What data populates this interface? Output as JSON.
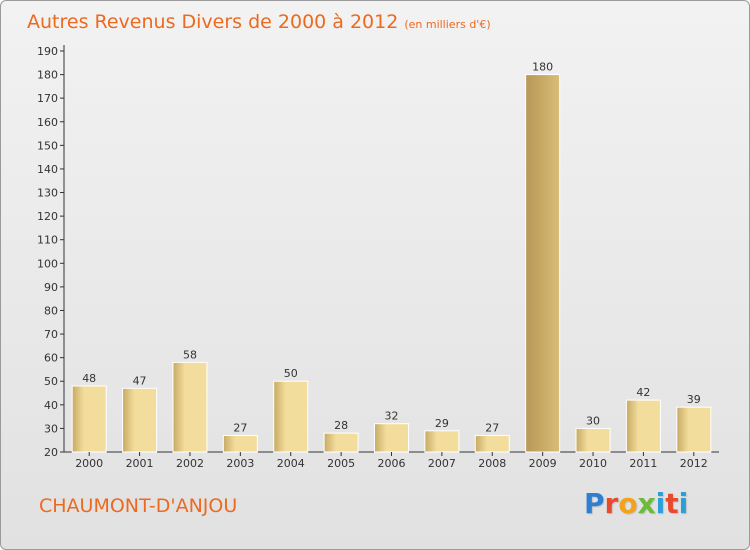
{
  "header": {
    "title": "Autres Revenus Divers de 2000 à 2012",
    "unit": "(en milliers d'€)"
  },
  "footer": {
    "place": "CHAUMONT-D'ANJOU",
    "logo": "Proxiti"
  },
  "colors": {
    "accent": "#ec6a1f",
    "bar_light": "#f3dd9d",
    "bar_dark": "#c7aa63",
    "axis": "#333333"
  },
  "chart_data": {
    "type": "bar",
    "categories": [
      "2000",
      "2001",
      "2002",
      "2003",
      "2004",
      "2005",
      "2006",
      "2007",
      "2008",
      "2009",
      "2010",
      "2011",
      "2012"
    ],
    "values": [
      48,
      47,
      58,
      27,
      50,
      28,
      32,
      29,
      27,
      180,
      30,
      42,
      39
    ],
    "data_labels": [
      "48",
      "47",
      "58",
      "27",
      "50",
      "28",
      "32",
      "29",
      "27",
      "180",
      "30",
      "42",
      "39"
    ],
    "ylim": [
      20,
      190
    ],
    "yticks": [
      20,
      30,
      40,
      50,
      60,
      70,
      80,
      90,
      100,
      110,
      120,
      130,
      140,
      150,
      160,
      170,
      180,
      190
    ],
    "grid": false,
    "legend": "none"
  }
}
